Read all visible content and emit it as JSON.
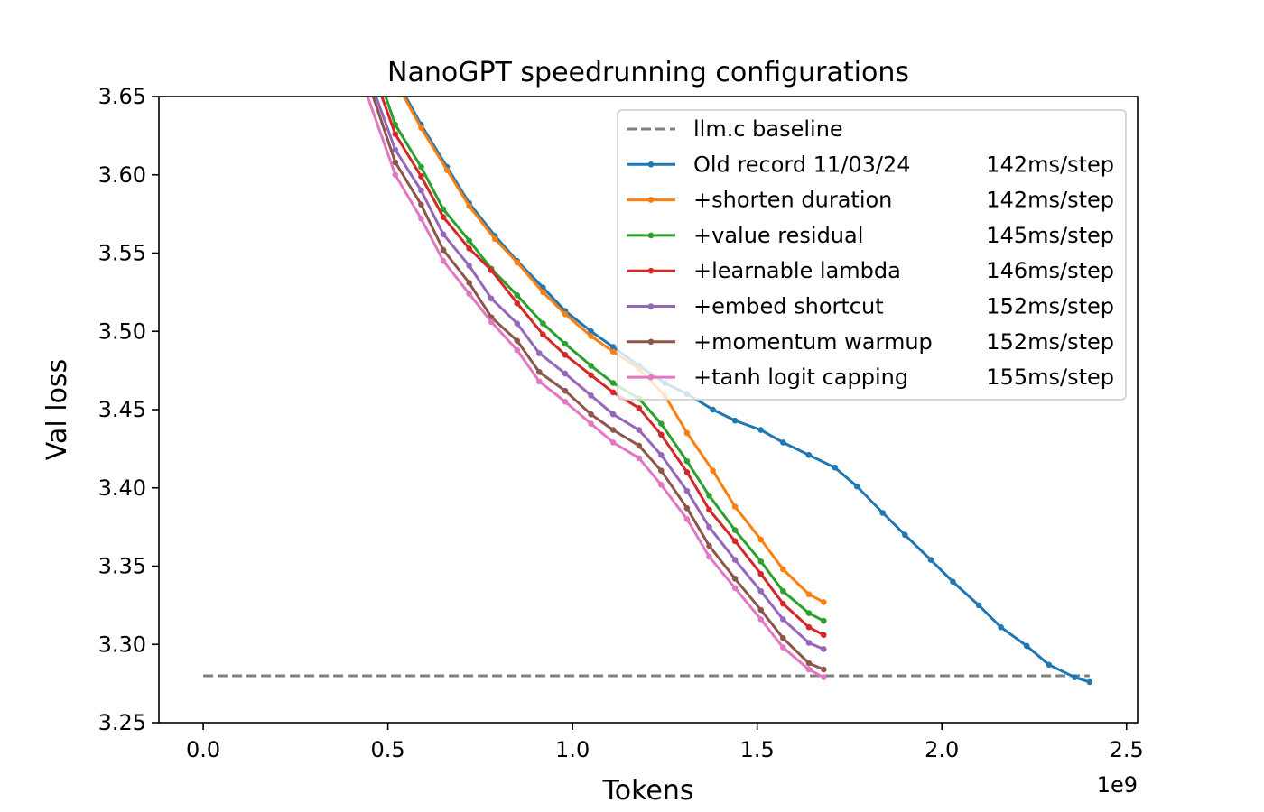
{
  "chart_data": {
    "type": "line",
    "title": "NanoGPT speedrunning configurations",
    "xlabel": "Tokens",
    "ylabel": "Val loss",
    "x_offset_label": "1e9",
    "xlim": [
      -0.12,
      2.53
    ],
    "ylim": [
      3.25,
      3.65
    ],
    "x_ticks": [
      {
        "value": 0.0,
        "label": "0.0"
      },
      {
        "value": 0.5,
        "label": "0.5"
      },
      {
        "value": 1.0,
        "label": "1.0"
      },
      {
        "value": 1.5,
        "label": "1.5"
      },
      {
        "value": 2.0,
        "label": "2.0"
      },
      {
        "value": 2.5,
        "label": "2.5"
      }
    ],
    "y_ticks": [
      {
        "value": 3.25,
        "label": "3.25"
      },
      {
        "value": 3.3,
        "label": "3.30"
      },
      {
        "value": 3.35,
        "label": "3.35"
      },
      {
        "value": 3.4,
        "label": "3.40"
      },
      {
        "value": 3.45,
        "label": "3.45"
      },
      {
        "value": 3.5,
        "label": "3.50"
      },
      {
        "value": 3.55,
        "label": "3.55"
      },
      {
        "value": 3.6,
        "label": "3.60"
      },
      {
        "value": 3.65,
        "label": "3.65"
      }
    ],
    "grid": false,
    "legend_position": "top-right",
    "baseline": {
      "name": "llm.c baseline",
      "y": 3.28,
      "x_range": [
        0.0,
        2.4
      ],
      "color": "#7f7f7f",
      "style": "dashed"
    },
    "series": [
      {
        "name": "Old record 11/03/24",
        "rate": "142ms/step",
        "color": "#1f77b4",
        "points": [
          [
            0.46,
            3.7
          ],
          [
            0.52,
            3.662
          ],
          [
            0.59,
            3.632
          ],
          [
            0.66,
            3.605
          ],
          [
            0.72,
            3.582
          ],
          [
            0.79,
            3.561
          ],
          [
            0.85,
            3.545
          ],
          [
            0.92,
            3.528
          ],
          [
            0.98,
            3.513
          ],
          [
            1.05,
            3.5
          ],
          [
            1.11,
            3.49
          ],
          [
            1.18,
            3.478
          ],
          [
            1.25,
            3.467
          ],
          [
            1.31,
            3.46
          ],
          [
            1.38,
            3.45
          ],
          [
            1.44,
            3.443
          ],
          [
            1.51,
            3.437
          ],
          [
            1.57,
            3.429
          ],
          [
            1.64,
            3.421
          ],
          [
            1.71,
            3.413
          ],
          [
            1.77,
            3.401
          ],
          [
            1.84,
            3.384
          ],
          [
            1.9,
            3.37
          ],
          [
            1.97,
            3.354
          ],
          [
            2.03,
            3.34
          ],
          [
            2.1,
            3.325
          ],
          [
            2.16,
            3.311
          ],
          [
            2.23,
            3.299
          ],
          [
            2.29,
            3.287
          ],
          [
            2.36,
            3.279
          ],
          [
            2.4,
            3.276
          ]
        ]
      },
      {
        "name": "+shorten duration",
        "rate": "142ms/step",
        "color": "#ff7f0e",
        "points": [
          [
            0.46,
            3.7
          ],
          [
            0.52,
            3.66
          ],
          [
            0.59,
            3.63
          ],
          [
            0.66,
            3.603
          ],
          [
            0.72,
            3.58
          ],
          [
            0.79,
            3.559
          ],
          [
            0.85,
            3.544
          ],
          [
            0.92,
            3.525
          ],
          [
            0.98,
            3.511
          ],
          [
            1.05,
            3.497
          ],
          [
            1.11,
            3.487
          ],
          [
            1.18,
            3.476
          ],
          [
            1.25,
            3.459
          ],
          [
            1.31,
            3.435
          ],
          [
            1.38,
            3.411
          ],
          [
            1.44,
            3.388
          ],
          [
            1.51,
            3.367
          ],
          [
            1.57,
            3.348
          ],
          [
            1.64,
            3.332
          ],
          [
            1.68,
            3.327
          ]
        ]
      },
      {
        "name": "+value residual",
        "rate": "145ms/step",
        "color": "#2ca02c",
        "points": [
          [
            0.45,
            3.68
          ],
          [
            0.52,
            3.632
          ],
          [
            0.59,
            3.605
          ],
          [
            0.65,
            3.578
          ],
          [
            0.72,
            3.558
          ],
          [
            0.78,
            3.54
          ],
          [
            0.85,
            3.523
          ],
          [
            0.92,
            3.505
          ],
          [
            0.98,
            3.492
          ],
          [
            1.05,
            3.478
          ],
          [
            1.11,
            3.467
          ],
          [
            1.18,
            3.457
          ],
          [
            1.24,
            3.441
          ],
          [
            1.31,
            3.417
          ],
          [
            1.37,
            3.395
          ],
          [
            1.44,
            3.373
          ],
          [
            1.51,
            3.353
          ],
          [
            1.57,
            3.334
          ],
          [
            1.64,
            3.32
          ],
          [
            1.68,
            3.315
          ]
        ]
      },
      {
        "name": "+learnable lambda",
        "rate": "146ms/step",
        "color": "#d62728",
        "points": [
          [
            0.45,
            3.672
          ],
          [
            0.52,
            3.626
          ],
          [
            0.59,
            3.599
          ],
          [
            0.65,
            3.573
          ],
          [
            0.72,
            3.553
          ],
          [
            0.78,
            3.539
          ],
          [
            0.85,
            3.518
          ],
          [
            0.92,
            3.498
          ],
          [
            0.98,
            3.485
          ],
          [
            1.05,
            3.472
          ],
          [
            1.11,
            3.461
          ],
          [
            1.18,
            3.451
          ],
          [
            1.24,
            3.434
          ],
          [
            1.31,
            3.41
          ],
          [
            1.37,
            3.386
          ],
          [
            1.44,
            3.366
          ],
          [
            1.51,
            3.345
          ],
          [
            1.57,
            3.326
          ],
          [
            1.64,
            3.311
          ],
          [
            1.68,
            3.306
          ]
        ]
      },
      {
        "name": "+embed shortcut",
        "rate": "152ms/step",
        "color": "#9467bd",
        "points": [
          [
            0.44,
            3.668
          ],
          [
            0.52,
            3.616
          ],
          [
            0.59,
            3.59
          ],
          [
            0.65,
            3.562
          ],
          [
            0.72,
            3.542
          ],
          [
            0.78,
            3.521
          ],
          [
            0.85,
            3.505
          ],
          [
            0.91,
            3.486
          ],
          [
            0.98,
            3.473
          ],
          [
            1.05,
            3.459
          ],
          [
            1.11,
            3.447
          ],
          [
            1.18,
            3.437
          ],
          [
            1.24,
            3.421
          ],
          [
            1.31,
            3.398
          ],
          [
            1.37,
            3.375
          ],
          [
            1.44,
            3.354
          ],
          [
            1.51,
            3.334
          ],
          [
            1.57,
            3.316
          ],
          [
            1.64,
            3.301
          ],
          [
            1.68,
            3.297
          ]
        ]
      },
      {
        "name": "+momentum warmup",
        "rate": "152ms/step",
        "color": "#8c564b",
        "points": [
          [
            0.44,
            3.664
          ],
          [
            0.52,
            3.608
          ],
          [
            0.59,
            3.581
          ],
          [
            0.65,
            3.552
          ],
          [
            0.72,
            3.531
          ],
          [
            0.78,
            3.509
          ],
          [
            0.85,
            3.494
          ],
          [
            0.91,
            3.474
          ],
          [
            0.98,
            3.462
          ],
          [
            1.05,
            3.447
          ],
          [
            1.11,
            3.437
          ],
          [
            1.18,
            3.427
          ],
          [
            1.24,
            3.411
          ],
          [
            1.31,
            3.387
          ],
          [
            1.37,
            3.363
          ],
          [
            1.44,
            3.342
          ],
          [
            1.51,
            3.322
          ],
          [
            1.57,
            3.304
          ],
          [
            1.64,
            3.288
          ],
          [
            1.68,
            3.284
          ]
        ]
      },
      {
        "name": "+tanh logit capping",
        "rate": "155ms/step",
        "color": "#e377c2",
        "points": [
          [
            0.43,
            3.66
          ],
          [
            0.52,
            3.6
          ],
          [
            0.59,
            3.572
          ],
          [
            0.65,
            3.545
          ],
          [
            0.72,
            3.524
          ],
          [
            0.78,
            3.506
          ],
          [
            0.85,
            3.488
          ],
          [
            0.91,
            3.468
          ],
          [
            0.98,
            3.455
          ],
          [
            1.05,
            3.441
          ],
          [
            1.11,
            3.429
          ],
          [
            1.18,
            3.419
          ],
          [
            1.24,
            3.402
          ],
          [
            1.31,
            3.38
          ],
          [
            1.37,
            3.356
          ],
          [
            1.44,
            3.336
          ],
          [
            1.51,
            3.316
          ],
          [
            1.57,
            3.298
          ],
          [
            1.64,
            3.284
          ],
          [
            1.68,
            3.279
          ]
        ]
      }
    ]
  }
}
